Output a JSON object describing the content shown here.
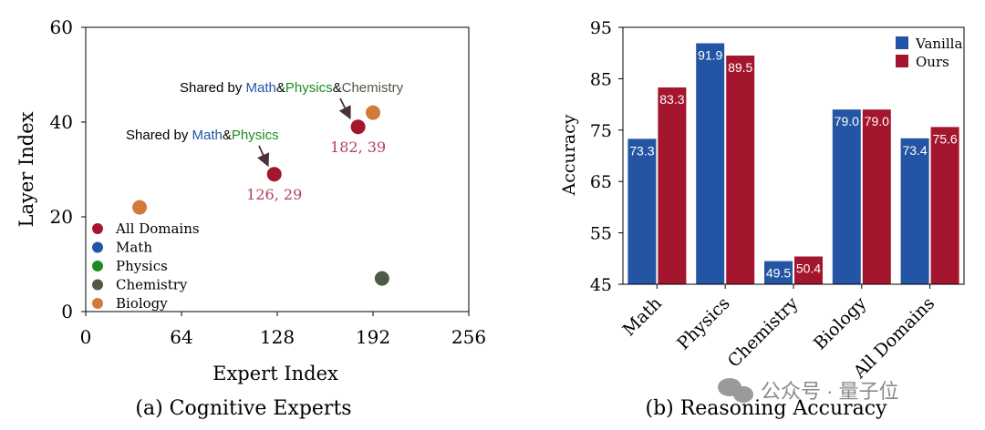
{
  "chart_data": [
    {
      "type": "scatter",
      "caption": "(a) Cognitive Experts",
      "xlabel": "Expert Index",
      "ylabel": "Layer Index",
      "xlim": [
        0,
        256
      ],
      "ylim": [
        0,
        60
      ],
      "xticks": [
        "0",
        "64",
        "128",
        "192",
        "256"
      ],
      "yticks": [
        "0",
        "20",
        "40",
        "60"
      ],
      "legend_position": "lower-left",
      "legend": [
        {
          "name": "All Domains",
          "color": "#a3162e"
        },
        {
          "name": "Math",
          "color": "#2455a4"
        },
        {
          "name": "Physics",
          "color": "#1e8c1e"
        },
        {
          "name": "Chemistry",
          "color": "#4d5a44"
        },
        {
          "name": "Biology",
          "color": "#d07b3c"
        }
      ],
      "points": [
        {
          "series": "All Domains",
          "x": 126,
          "y": 29,
          "label": "126, 29"
        },
        {
          "series": "All Domains",
          "x": 182,
          "y": 39,
          "label": "182, 39"
        },
        {
          "series": "Biology",
          "x": 36,
          "y": 22
        },
        {
          "series": "Biology",
          "x": 192,
          "y": 42
        },
        {
          "series": "Chemistry",
          "x": 198,
          "y": 7
        }
      ],
      "annotations": {
        "a1": {
          "prefix": "Shared by ",
          "math": "Math",
          "amp1": "&",
          "physics": "Physics"
        },
        "a2": {
          "prefix": "Shared by ",
          "math": "Math",
          "amp1": "&",
          "physics": "Physics",
          "amp2": "&",
          "chemistry": "Chemistry"
        }
      },
      "grid": false
    },
    {
      "type": "bar",
      "caption": "(b) Reasoning Accuracy",
      "ylabel": "Accuracy",
      "ylim": [
        45,
        95
      ],
      "yticks": [
        "45",
        "55",
        "65",
        "75",
        "85",
        "95"
      ],
      "categories": [
        "Math",
        "Physics",
        "Chemistry",
        "Biology",
        "All Domains"
      ],
      "series": [
        {
          "name": "Vanilla",
          "color": "#2455a4",
          "values": [
            73.3,
            91.9,
            49.5,
            79.0,
            73.4
          ]
        },
        {
          "name": "Ours",
          "color": "#a3162e",
          "values": [
            83.3,
            89.5,
            50.4,
            79.0,
            75.6
          ]
        }
      ],
      "legend_position": "top-right",
      "grid": false
    }
  ],
  "watermark": "公众号 · 量子位"
}
